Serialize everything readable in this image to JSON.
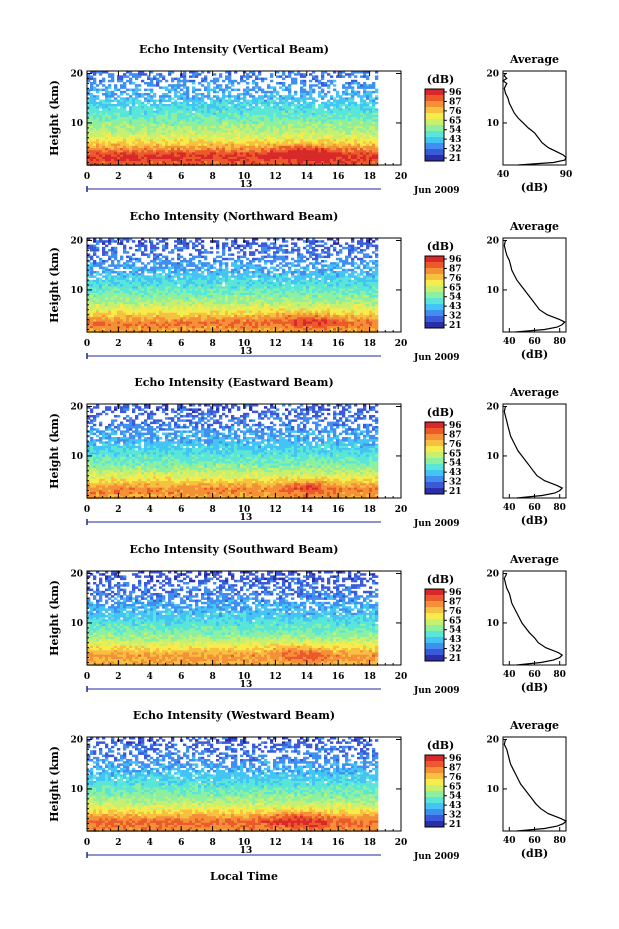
{
  "figure": {
    "xlabel": "Local Time",
    "date_label": "Jun 2009",
    "day_label": "13",
    "colorbar_unit": "(dB)",
    "colorbar_ticks": [
      "96",
      "87",
      "76",
      "65",
      "54",
      "43",
      "32",
      "21"
    ],
    "profile_title": "Average",
    "profile_xlabel": "(dB)",
    "ylabel": "Height (km)",
    "colorscale": [
      "#2a2ea8",
      "#3a5ad8",
      "#3f8ef0",
      "#43c4f4",
      "#59e6d8",
      "#8cf0a0",
      "#c8f070",
      "#f6ec4c",
      "#f8c040",
      "#f49036",
      "#ec5a2c",
      "#d8282a"
    ]
  },
  "chart_data": [
    {
      "type": "heatmap",
      "title": "Echo Intensity (Vertical Beam)",
      "x_ticks": [
        "0",
        "2",
        "4",
        "6",
        "8",
        "10",
        "12",
        "14",
        "16",
        "18",
        "20"
      ],
      "y_ticks": [
        "10",
        "20"
      ],
      "xlim": [
        0,
        20
      ],
      "ylim": [
        1.5,
        20.5
      ],
      "zlim": [
        21,
        96
      ],
      "data_end_hour": 18.5,
      "intensity_profile": [
        [
          2,
          86
        ],
        [
          3.5,
          92
        ],
        [
          5,
          80
        ],
        [
          6.5,
          69
        ],
        [
          8,
          62
        ],
        [
          10,
          56
        ],
        [
          12,
          50
        ],
        [
          14,
          45
        ],
        [
          16,
          41
        ],
        [
          18,
          37
        ],
        [
          20,
          34
        ]
      ],
      "hotspots": [
        [
          14.5,
          4,
          8
        ],
        [
          13,
          4.5,
          6
        ]
      ],
      "profile": {
        "x_ticks": [
          "40",
          "90"
        ],
        "xlim": [
          40,
          90
        ],
        "y_ticks": [
          "10",
          "20"
        ],
        "points": [
          [
            1.5,
            52
          ],
          [
            2.0,
            80
          ],
          [
            2.5,
            89
          ],
          [
            3.0,
            90
          ],
          [
            3.5,
            88
          ],
          [
            4.0,
            84
          ],
          [
            5.0,
            76
          ],
          [
            6.0,
            71
          ],
          [
            7.0,
            68
          ],
          [
            8.0,
            65
          ],
          [
            9.0,
            60
          ],
          [
            10.0,
            56
          ],
          [
            11.0,
            52
          ],
          [
            12.0,
            49
          ],
          [
            13.0,
            47
          ],
          [
            14.0,
            45
          ],
          [
            15.0,
            44
          ],
          [
            16.0,
            42
          ],
          [
            17.0,
            41
          ],
          [
            18.0,
            43
          ],
          [
            18.5,
            40
          ],
          [
            19.0,
            43
          ],
          [
            19.5,
            41
          ],
          [
            20.0,
            42
          ]
        ]
      }
    },
    {
      "type": "heatmap",
      "title": "Echo Intensity (Northward Beam)",
      "x_ticks": [
        "0",
        "2",
        "4",
        "6",
        "8",
        "10",
        "12",
        "14",
        "16",
        "18",
        "20"
      ],
      "y_ticks": [
        "10",
        "20"
      ],
      "xlim": [
        0,
        20
      ],
      "ylim": [
        1.5,
        20.5
      ],
      "zlim": [
        21,
        96
      ],
      "data_end_hour": 18.5,
      "intensity_profile": [
        [
          2,
          78
        ],
        [
          3.5,
          84
        ],
        [
          5,
          74
        ],
        [
          6.5,
          65
        ],
        [
          8,
          58
        ],
        [
          10,
          52
        ],
        [
          12,
          46
        ],
        [
          14,
          41
        ],
        [
          16,
          37
        ],
        [
          18,
          33
        ],
        [
          20,
          30
        ]
      ],
      "hotspots": [
        [
          14.5,
          4,
          8
        ],
        [
          12.5,
          4.5,
          5
        ]
      ],
      "profile": {
        "x_ticks": [
          "40",
          "60",
          "80"
        ],
        "xlim": [
          35,
          85
        ],
        "y_ticks": [
          "10",
          "20"
        ],
        "points": [
          [
            1.5,
            45
          ],
          [
            2.0,
            68
          ],
          [
            2.5,
            78
          ],
          [
            3.0,
            82
          ],
          [
            3.5,
            84
          ],
          [
            4.0,
            80
          ],
          [
            5.0,
            70
          ],
          [
            6.0,
            64
          ],
          [
            7.0,
            61
          ],
          [
            8.0,
            58
          ],
          [
            9.0,
            55
          ],
          [
            10.0,
            52
          ],
          [
            11.0,
            49
          ],
          [
            12.0,
            46
          ],
          [
            13.0,
            44
          ],
          [
            14.0,
            42
          ],
          [
            15.0,
            41
          ],
          [
            16.0,
            40
          ],
          [
            17.0,
            38
          ],
          [
            18.0,
            37
          ],
          [
            19.0,
            36
          ],
          [
            20.0,
            37
          ]
        ]
      }
    },
    {
      "type": "heatmap",
      "title": "Echo Intensity (Eastward Beam)",
      "x_ticks": [
        "0",
        "2",
        "4",
        "6",
        "8",
        "10",
        "12",
        "14",
        "16",
        "18",
        "20"
      ],
      "y_ticks": [
        "10",
        "20"
      ],
      "xlim": [
        0,
        20
      ],
      "ylim": [
        1.5,
        20.5
      ],
      "zlim": [
        21,
        96
      ],
      "data_end_hour": 18.5,
      "intensity_profile": [
        [
          2,
          78
        ],
        [
          3.5,
          82
        ],
        [
          5,
          72
        ],
        [
          6.5,
          63
        ],
        [
          8,
          56
        ],
        [
          10,
          50
        ],
        [
          12,
          44
        ],
        [
          14,
          40
        ],
        [
          16,
          36
        ],
        [
          18,
          33
        ],
        [
          20,
          30
        ]
      ],
      "hotspots": [
        [
          14,
          4,
          9
        ]
      ],
      "profile": {
        "x_ticks": [
          "40",
          "60",
          "80"
        ],
        "xlim": [
          35,
          85
        ],
        "y_ticks": [
          "10",
          "20"
        ],
        "points": [
          [
            1.5,
            46
          ],
          [
            2.0,
            66
          ],
          [
            2.5,
            76
          ],
          [
            3.0,
            80
          ],
          [
            3.5,
            82
          ],
          [
            4.0,
            78
          ],
          [
            5.0,
            68
          ],
          [
            6.0,
            62
          ],
          [
            7.0,
            59
          ],
          [
            8.0,
            56
          ],
          [
            9.0,
            53
          ],
          [
            10.0,
            50
          ],
          [
            11.0,
            47
          ],
          [
            12.0,
            45
          ],
          [
            13.0,
            43
          ],
          [
            14.0,
            41
          ],
          [
            15.0,
            40
          ],
          [
            16.0,
            39
          ],
          [
            17.0,
            38
          ],
          [
            18.0,
            37
          ],
          [
            19.0,
            36
          ],
          [
            20.0,
            37
          ]
        ]
      }
    },
    {
      "type": "heatmap",
      "title": "Echo Intensity (Southward Beam)",
      "x_ticks": [
        "0",
        "2",
        "4",
        "6",
        "8",
        "10",
        "12",
        "14",
        "16",
        "18",
        "20"
      ],
      "y_ticks": [
        "10",
        "20"
      ],
      "xlim": [
        0,
        20
      ],
      "ylim": [
        1.5,
        20.5
      ],
      "zlim": [
        21,
        96
      ],
      "data_end_hour": 18.5,
      "intensity_profile": [
        [
          2,
          76
        ],
        [
          3.5,
          80
        ],
        [
          5,
          70
        ],
        [
          6.5,
          62
        ],
        [
          8,
          55
        ],
        [
          10,
          49
        ],
        [
          12,
          43
        ],
        [
          14,
          39
        ],
        [
          16,
          35
        ],
        [
          18,
          32
        ],
        [
          20,
          29
        ]
      ],
      "hotspots": [
        [
          14,
          4,
          8
        ],
        [
          12.5,
          5,
          4
        ]
      ],
      "profile": {
        "x_ticks": [
          "40",
          "60",
          "80"
        ],
        "xlim": [
          35,
          85
        ],
        "y_ticks": [
          "10",
          "20"
        ],
        "points": [
          [
            1.5,
            46
          ],
          [
            2.0,
            65
          ],
          [
            2.5,
            75
          ],
          [
            3.0,
            80
          ],
          [
            3.5,
            82
          ],
          [
            4.0,
            79
          ],
          [
            5.0,
            69
          ],
          [
            6.0,
            63
          ],
          [
            7.0,
            60
          ],
          [
            8.0,
            56
          ],
          [
            9.0,
            53
          ],
          [
            10.0,
            50
          ],
          [
            11.0,
            48
          ],
          [
            12.0,
            46
          ],
          [
            13.0,
            44
          ],
          [
            14.0,
            42
          ],
          [
            15.0,
            41
          ],
          [
            16.0,
            40
          ],
          [
            17.0,
            38
          ],
          [
            18.0,
            37
          ],
          [
            19.0,
            36
          ],
          [
            20.0,
            38
          ]
        ]
      }
    },
    {
      "type": "heatmap",
      "title": "Echo Intensity (Westward Beam)",
      "x_ticks": [
        "0",
        "2",
        "4",
        "6",
        "8",
        "10",
        "12",
        "14",
        "16",
        "18",
        "20"
      ],
      "y_ticks": [
        "10",
        "20"
      ],
      "xlim": [
        0,
        20
      ],
      "ylim": [
        1.5,
        20.5
      ],
      "zlim": [
        21,
        96
      ],
      "data_end_hour": 18.5,
      "intensity_profile": [
        [
          2,
          80
        ],
        [
          3.5,
          86
        ],
        [
          5,
          75
        ],
        [
          6.5,
          65
        ],
        [
          8,
          58
        ],
        [
          10,
          52
        ],
        [
          12,
          46
        ],
        [
          14,
          41
        ],
        [
          16,
          37
        ],
        [
          18,
          33
        ],
        [
          20,
          30
        ]
      ],
      "hotspots": [
        [
          14,
          4,
          8
        ],
        [
          12.5,
          4.5,
          5
        ]
      ],
      "profile": {
        "x_ticks": [
          "40",
          "60",
          "80"
        ],
        "xlim": [
          35,
          85
        ],
        "y_ticks": [
          "10",
          "20"
        ],
        "points": [
          [
            1.5,
            46
          ],
          [
            2.0,
            68
          ],
          [
            2.5,
            78
          ],
          [
            3.0,
            83
          ],
          [
            3.5,
            85
          ],
          [
            4.0,
            81
          ],
          [
            5.0,
            71
          ],
          [
            6.0,
            65
          ],
          [
            7.0,
            61
          ],
          [
            8.0,
            58
          ],
          [
            9.0,
            55
          ],
          [
            10.0,
            52
          ],
          [
            11.0,
            49
          ],
          [
            12.0,
            47
          ],
          [
            13.0,
            45
          ],
          [
            14.0,
            43
          ],
          [
            15.0,
            41
          ],
          [
            16.0,
            40
          ],
          [
            17.0,
            39
          ],
          [
            18.0,
            38
          ],
          [
            19.0,
            36
          ],
          [
            20.0,
            37
          ]
        ]
      }
    }
  ]
}
